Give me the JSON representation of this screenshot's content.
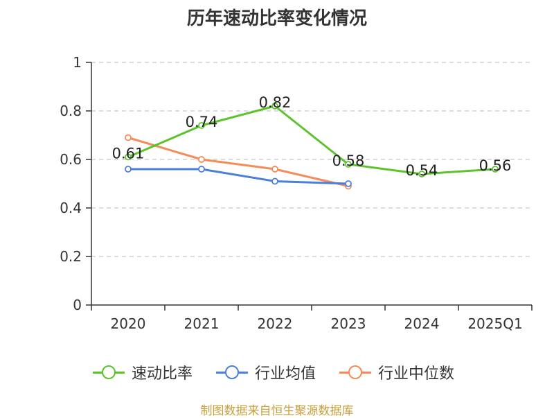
{
  "chart_data": {
    "type": "line",
    "title": "历年速动比率变化情况",
    "categories": [
      "2020",
      "2021",
      "2022",
      "2023",
      "2024",
      "2025Q1"
    ],
    "ylim": [
      0,
      1
    ],
    "yticks": [
      "0",
      "0.2",
      "0.4",
      "0.6",
      "0.8",
      "1"
    ],
    "ytick_values": [
      0,
      0.2,
      0.4,
      0.6,
      0.8,
      1
    ],
    "grid": true,
    "legend_position": "bottom",
    "series": [
      {
        "name": "速动比率",
        "color": "#5cc42a",
        "values": [
          0.61,
          0.74,
          0.82,
          0.58,
          0.54,
          0.56
        ],
        "labels": [
          "0.61",
          "0.74",
          "0.82",
          "0.58",
          "0.54",
          "0.56"
        ]
      },
      {
        "name": "行业均值",
        "color": "#4a7fdc",
        "values": [
          0.56,
          0.56,
          0.51,
          0.5,
          null,
          null
        ]
      },
      {
        "name": "行业中位数",
        "color": "#f58b58",
        "values": [
          0.69,
          0.6,
          0.56,
          0.49,
          null,
          null
        ]
      }
    ]
  },
  "source_note": "制图数据来自恒生聚源数据库"
}
